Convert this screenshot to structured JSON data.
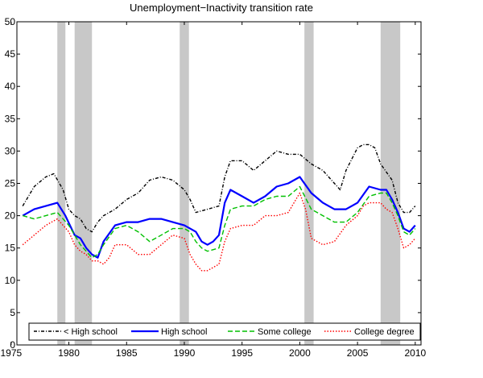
{
  "chart_data": {
    "type": "line",
    "title": "Unemployment−Inactivity transition rate",
    "xlabel": "",
    "ylabel": "",
    "xlim": [
      1975.5,
      2010.5
    ],
    "ylim": [
      0,
      50
    ],
    "xticks": [
      1975,
      1980,
      1985,
      1990,
      1995,
      2000,
      2005,
      2010
    ],
    "yticks": [
      0,
      5,
      10,
      15,
      20,
      25,
      30,
      35,
      40,
      45,
      50
    ],
    "grid": false,
    "legend_position": "bottom",
    "recessions": [
      [
        1979.0,
        1979.7
      ],
      [
        1980.5,
        1982.0
      ],
      [
        1989.6,
        1990.4
      ],
      [
        2000.4,
        2001.2
      ],
      [
        2007.0,
        2008.7
      ]
    ],
    "series": [
      {
        "name": "< High school",
        "color": "#000000",
        "dash": "dashdot",
        "x": [
          1976,
          1977,
          1978,
          1978.7,
          1979.5,
          1980,
          1980.5,
          1981,
          1981.5,
          1982,
          1982.5,
          1983,
          1984,
          1985,
          1986,
          1987,
          1988,
          1989,
          1990,
          1990.5,
          1991,
          1992,
          1993,
          1993.5,
          1994,
          1995,
          1996,
          1997,
          1998,
          1999,
          2000,
          2001,
          2002,
          2003,
          2003.5,
          2004,
          2005,
          2005.5,
          2006,
          2006.5,
          2007,
          2008,
          2008.5,
          2009,
          2009.5,
          2010
        ],
        "y": [
          21.5,
          24.5,
          26,
          26.5,
          24,
          21,
          20,
          19.5,
          18,
          17.5,
          19,
          20,
          21,
          22.5,
          23.5,
          25.5,
          26,
          25.5,
          24,
          22.5,
          20.5,
          21,
          21.5,
          26,
          28.5,
          28.5,
          27,
          28.5,
          30,
          29.5,
          29.5,
          28,
          27,
          25,
          24,
          27,
          30.5,
          31,
          31,
          30.5,
          28,
          25.5,
          22,
          20.5,
          20.5,
          21.5
        ]
      },
      {
        "name": "High school",
        "color": "#0000ff",
        "dash": "solid",
        "x": [
          1976,
          1977,
          1978,
          1979,
          1979.7,
          1980.5,
          1981,
          1981.5,
          1982,
          1982.5,
          1983,
          1984,
          1985,
          1986,
          1987,
          1988,
          1989,
          1990,
          1991,
          1991.5,
          1992,
          1992.5,
          1993,
          1993.5,
          1994,
          1995,
          1996,
          1997,
          1998,
          1999,
          2000,
          2001,
          2002,
          2003,
          2004,
          2005,
          2006,
          2007,
          2007.5,
          2008,
          2008.5,
          2009,
          2009.5,
          2010
        ],
        "y": [
          20,
          21,
          21.5,
          22,
          20,
          17,
          16.5,
          15,
          14,
          13.5,
          16,
          18.5,
          19,
          19,
          19.5,
          19.5,
          19,
          18.5,
          17.5,
          16,
          15.5,
          16,
          17,
          22,
          24,
          23,
          22,
          23,
          24.5,
          25,
          26,
          23.5,
          22,
          21,
          21,
          22,
          24.5,
          24,
          24,
          22.5,
          20.5,
          18,
          17.5,
          18.5
        ]
      },
      {
        "name": "Some college",
        "color": "#00c000",
        "dash": "dashed",
        "x": [
          1976,
          1977,
          1978,
          1979,
          1980,
          1980.5,
          1981,
          1981.5,
          1982,
          1982.5,
          1983,
          1984,
          1985,
          1986,
          1987,
          1988,
          1989,
          1990,
          1990.5,
          1991,
          1991.5,
          1992,
          1993,
          1993.5,
          1994,
          1995,
          1996,
          1997,
          1998,
          1999,
          2000,
          2001,
          2002,
          2003,
          2004,
          2005,
          2006,
          2007,
          2007.5,
          2008,
          2008.5,
          2009,
          2009.5,
          2010
        ],
        "y": [
          20,
          19.5,
          20,
          20.5,
          18.5,
          17,
          15.5,
          14.5,
          13.5,
          14,
          15.5,
          18,
          18.5,
          17.5,
          16,
          17,
          18,
          18,
          17.5,
          16,
          15,
          14.5,
          15,
          18.5,
          21,
          21.5,
          21.5,
          22.5,
          23,
          23,
          24.5,
          21,
          20,
          19,
          19,
          20.5,
          23,
          23.5,
          23.5,
          22,
          20,
          17.5,
          17,
          18
        ]
      },
      {
        "name": "College degree",
        "color": "#ff0000",
        "dash": "dotted",
        "x": [
          1976,
          1977,
          1978,
          1979,
          1980,
          1980.5,
          1981,
          1981.5,
          1982,
          1982.5,
          1983,
          1983.5,
          1984,
          1985,
          1986,
          1987,
          1988,
          1989,
          1990,
          1990.5,
          1991,
          1991.5,
          1992,
          1993,
          1993.5,
          1994,
          1995,
          1996,
          1997,
          1998,
          1999,
          1999.5,
          2000,
          2000.5,
          2001,
          2002,
          2003,
          2004,
          2005,
          2005.5,
          2006,
          2007,
          2007.5,
          2008,
          2008.5,
          2009,
          2009.5,
          2010
        ],
        "y": [
          15.5,
          17,
          18.5,
          19.5,
          17.5,
          15.5,
          14.5,
          14,
          13,
          13,
          12.5,
          13.5,
          15.5,
          15.5,
          14,
          14,
          15.5,
          17,
          16.5,
          14,
          12.5,
          11.5,
          11.5,
          12.5,
          16,
          18,
          18.5,
          18.5,
          20,
          20,
          20.5,
          22,
          23.5,
          21,
          16.5,
          15.5,
          16,
          18.5,
          20,
          21.5,
          22,
          22,
          21,
          20.5,
          18,
          15,
          15.5,
          16.5
        ]
      }
    ]
  }
}
